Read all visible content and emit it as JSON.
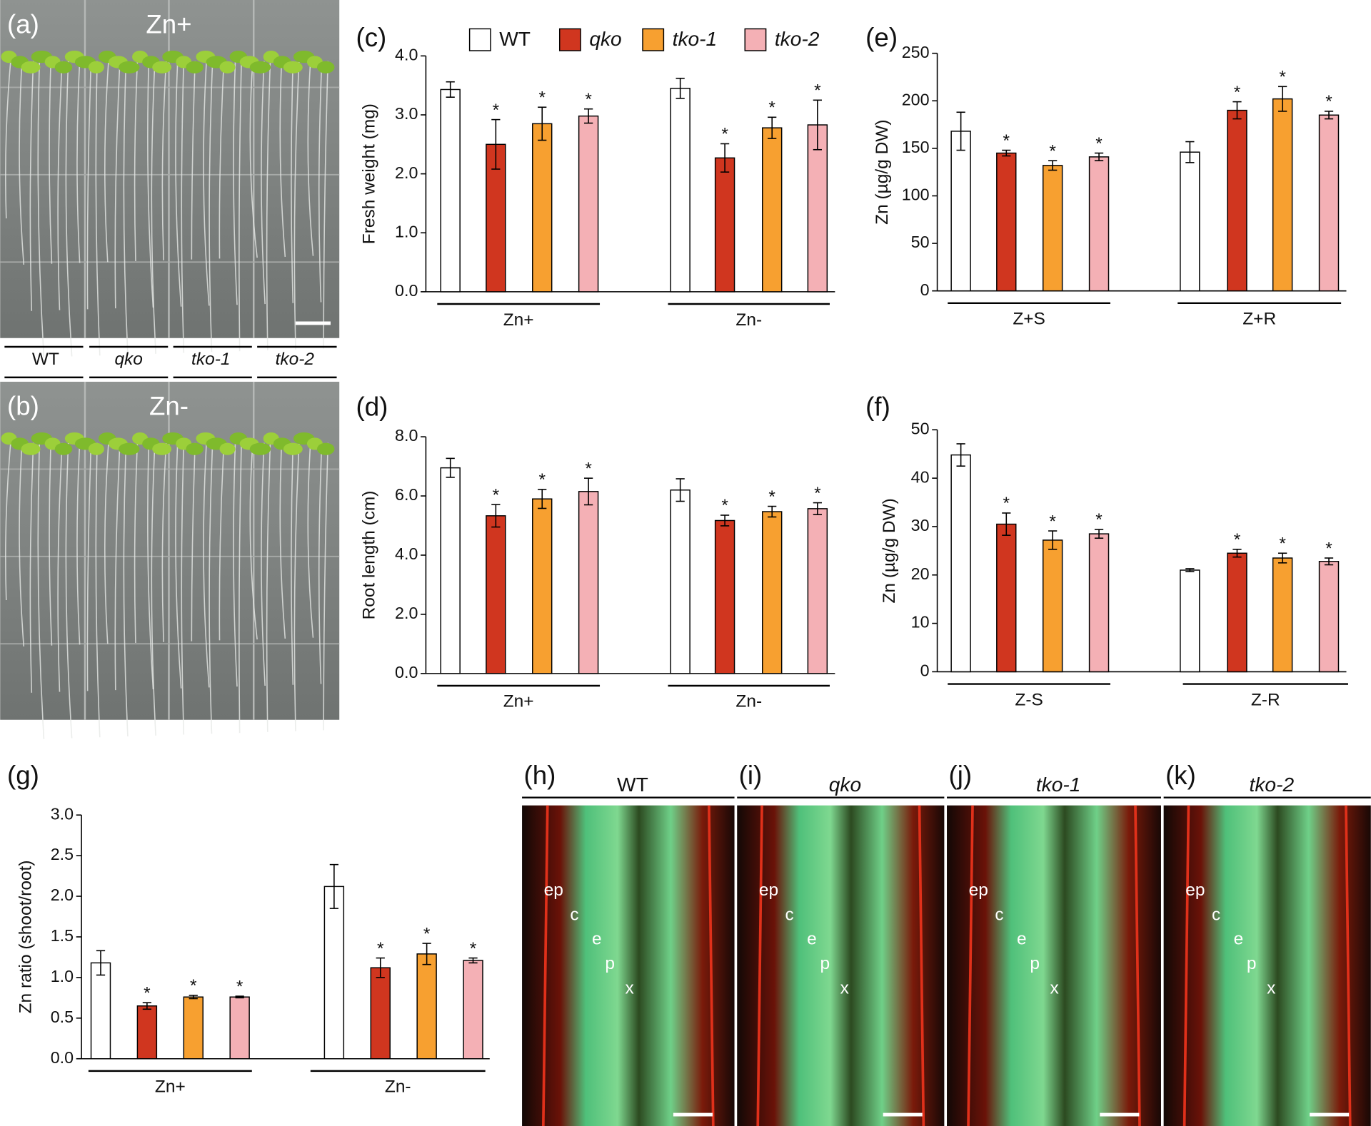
{
  "images": [
    {
      "label": "(a)",
      "condition": "Zn+"
    },
    {
      "label": "(b)",
      "condition": "Zn-"
    }
  ],
  "genotypes": [
    "WT",
    "qko",
    "tko-1",
    "tko-2"
  ],
  "micrographs": [
    {
      "label": "(h)",
      "title": "WT",
      "annotations": [
        "ep",
        "c",
        "e",
        "p",
        "x"
      ]
    },
    {
      "label": "(i)",
      "title": "qko",
      "annotations": [
        "ep",
        "c",
        "e",
        "p",
        "x"
      ]
    },
    {
      "label": "(j)",
      "title": "tko-1",
      "annotations": [
        "ep",
        "c",
        "e",
        "p",
        "x"
      ]
    },
    {
      "label": "(k)",
      "title": "tko-2",
      "annotations": [
        "ep",
        "c",
        "e",
        "p",
        "x"
      ]
    }
  ],
  "chart_data": [
    {
      "type": "bar",
      "panel": "(c)",
      "y_label": "Fresh weight (mg)",
      "categories": [
        "Zn+",
        "Zn-"
      ],
      "legend": true,
      "series": [
        {
          "name": "WT",
          "color": "#ffffff",
          "values": [
            3.43,
            3.45
          ],
          "errors": [
            0.13,
            0.17
          ]
        },
        {
          "name": "qko",
          "color": "#d0361f",
          "italic": true,
          "values": [
            2.5,
            2.27
          ],
          "errors": [
            0.42,
            0.24
          ],
          "annotations": [
            "*",
            "*"
          ]
        },
        {
          "name": "tko-1",
          "color": "#f7a030",
          "italic": true,
          "values": [
            2.85,
            2.78
          ],
          "errors": [
            0.28,
            0.18
          ],
          "annotations": [
            "*",
            "*"
          ]
        },
        {
          "name": "tko-2",
          "color": "#f4b0b5",
          "italic": true,
          "values": [
            2.98,
            2.83
          ],
          "errors": [
            0.12,
            0.42
          ],
          "annotations": [
            "*",
            "*"
          ]
        }
      ],
      "ylim": [
        0,
        4
      ],
      "yticks": [
        {
          "value": 0,
          "label": "0.0"
        },
        {
          "value": 1,
          "label": "1.0"
        },
        {
          "value": 2,
          "label": "2.0"
        },
        {
          "value": 3,
          "label": "3.0"
        },
        {
          "value": 4,
          "label": "4.0"
        }
      ]
    },
    {
      "type": "bar",
      "panel": "(d)",
      "y_label": "Root length (cm)",
      "categories": [
        "Zn+",
        "Zn-"
      ],
      "series": [
        {
          "color": "#ffffff",
          "values": [
            6.95,
            6.2
          ],
          "errors": [
            0.32,
            0.38
          ]
        },
        {
          "color": "#d0361f",
          "values": [
            5.33,
            5.17
          ],
          "errors": [
            0.38,
            0.18
          ],
          "annotations": [
            "*",
            "*"
          ]
        },
        {
          "color": "#f7a030",
          "values": [
            5.9,
            5.47
          ],
          "errors": [
            0.32,
            0.18
          ],
          "annotations": [
            "*",
            "*"
          ]
        },
        {
          "color": "#f4b0b5",
          "values": [
            6.15,
            5.57
          ],
          "errors": [
            0.45,
            0.2
          ],
          "annotations": [
            "*",
            "*"
          ]
        }
      ],
      "ylim": [
        0,
        8
      ],
      "yticks": [
        {
          "value": 0,
          "label": "0.0"
        },
        {
          "value": 2,
          "label": "2.0"
        },
        {
          "value": 4,
          "label": "4.0"
        },
        {
          "value": 6,
          "label": "6.0"
        },
        {
          "value": 8,
          "label": "8.0"
        }
      ]
    },
    {
      "type": "bar",
      "panel": "(e)",
      "y_label": "Zn (µg/g DW)",
      "categories": [
        "Z+S",
        "Z+R"
      ],
      "series": [
        {
          "color": "#ffffff",
          "values": [
            168,
            146
          ],
          "errors": [
            20,
            11
          ]
        },
        {
          "color": "#d0361f",
          "values": [
            145,
            190
          ],
          "errors": [
            3,
            9
          ],
          "annotations": [
            "*",
            "*"
          ]
        },
        {
          "color": "#f7a030",
          "values": [
            132,
            202
          ],
          "errors": [
            5,
            13
          ],
          "annotations": [
            "*",
            "*"
          ]
        },
        {
          "color": "#f4b0b5",
          "values": [
            141,
            185
          ],
          "errors": [
            4,
            4
          ],
          "annotations": [
            "*",
            "*"
          ]
        }
      ],
      "ylim": [
        0,
        250
      ],
      "yticks": [
        0,
        50,
        100,
        150,
        200,
        250
      ]
    },
    {
      "type": "bar",
      "panel": "(f)",
      "y_label": "Zn (µg/g DW)",
      "categories": [
        "Z-S",
        "Z-R"
      ],
      "series": [
        {
          "color": "#ffffff",
          "values": [
            44.8,
            21
          ],
          "errors": [
            2.3,
            0.3
          ]
        },
        {
          "color": "#d0361f",
          "values": [
            30.5,
            24.5
          ],
          "errors": [
            2.3,
            0.8
          ],
          "annotations": [
            "*",
            "*"
          ]
        },
        {
          "color": "#f7a030",
          "values": [
            27.2,
            23.5
          ],
          "errors": [
            1.9,
            1
          ],
          "annotations": [
            "*",
            "*"
          ]
        },
        {
          "color": "#f4b0b5",
          "values": [
            28.5,
            22.8
          ],
          "errors": [
            0.9,
            0.7
          ],
          "annotations": [
            "*",
            "*"
          ]
        }
      ],
      "ylim": [
        0,
        50
      ],
      "yticks": [
        0,
        10,
        20,
        30,
        40,
        50
      ]
    },
    {
      "type": "bar",
      "panel": "(g)",
      "y_label": "Zn ratio (shoot/root)",
      "categories": [
        "Zn+",
        "Zn-"
      ],
      "series": [
        {
          "color": "#ffffff",
          "values": [
            1.18,
            2.12
          ],
          "errors": [
            0.15,
            0.27
          ]
        },
        {
          "color": "#d0361f",
          "values": [
            0.65,
            1.12
          ],
          "errors": [
            0.04,
            0.12
          ],
          "annotations": [
            "*",
            "*"
          ]
        },
        {
          "color": "#f7a030",
          "values": [
            0.76,
            1.29
          ],
          "errors": [
            0.02,
            0.13
          ],
          "annotations": [
            "*",
            "*"
          ]
        },
        {
          "color": "#f4b0b5",
          "values": [
            0.76,
            1.21
          ],
          "errors": [
            0.01,
            0.03
          ],
          "annotations": [
            "*",
            "*"
          ]
        }
      ],
      "ylim": [
        0,
        3
      ],
      "yticks": [
        {
          "value": 0,
          "label": "0.0"
        },
        {
          "value": 0.5,
          "label": "0.5"
        },
        {
          "value": 1,
          "label": "1.0"
        },
        {
          "value": 1.5,
          "label": "1.5"
        },
        {
          "value": 2,
          "label": "2.0"
        },
        {
          "value": 2.5,
          "label": "2.5"
        },
        {
          "value": 3,
          "label": "3.0"
        }
      ]
    }
  ]
}
